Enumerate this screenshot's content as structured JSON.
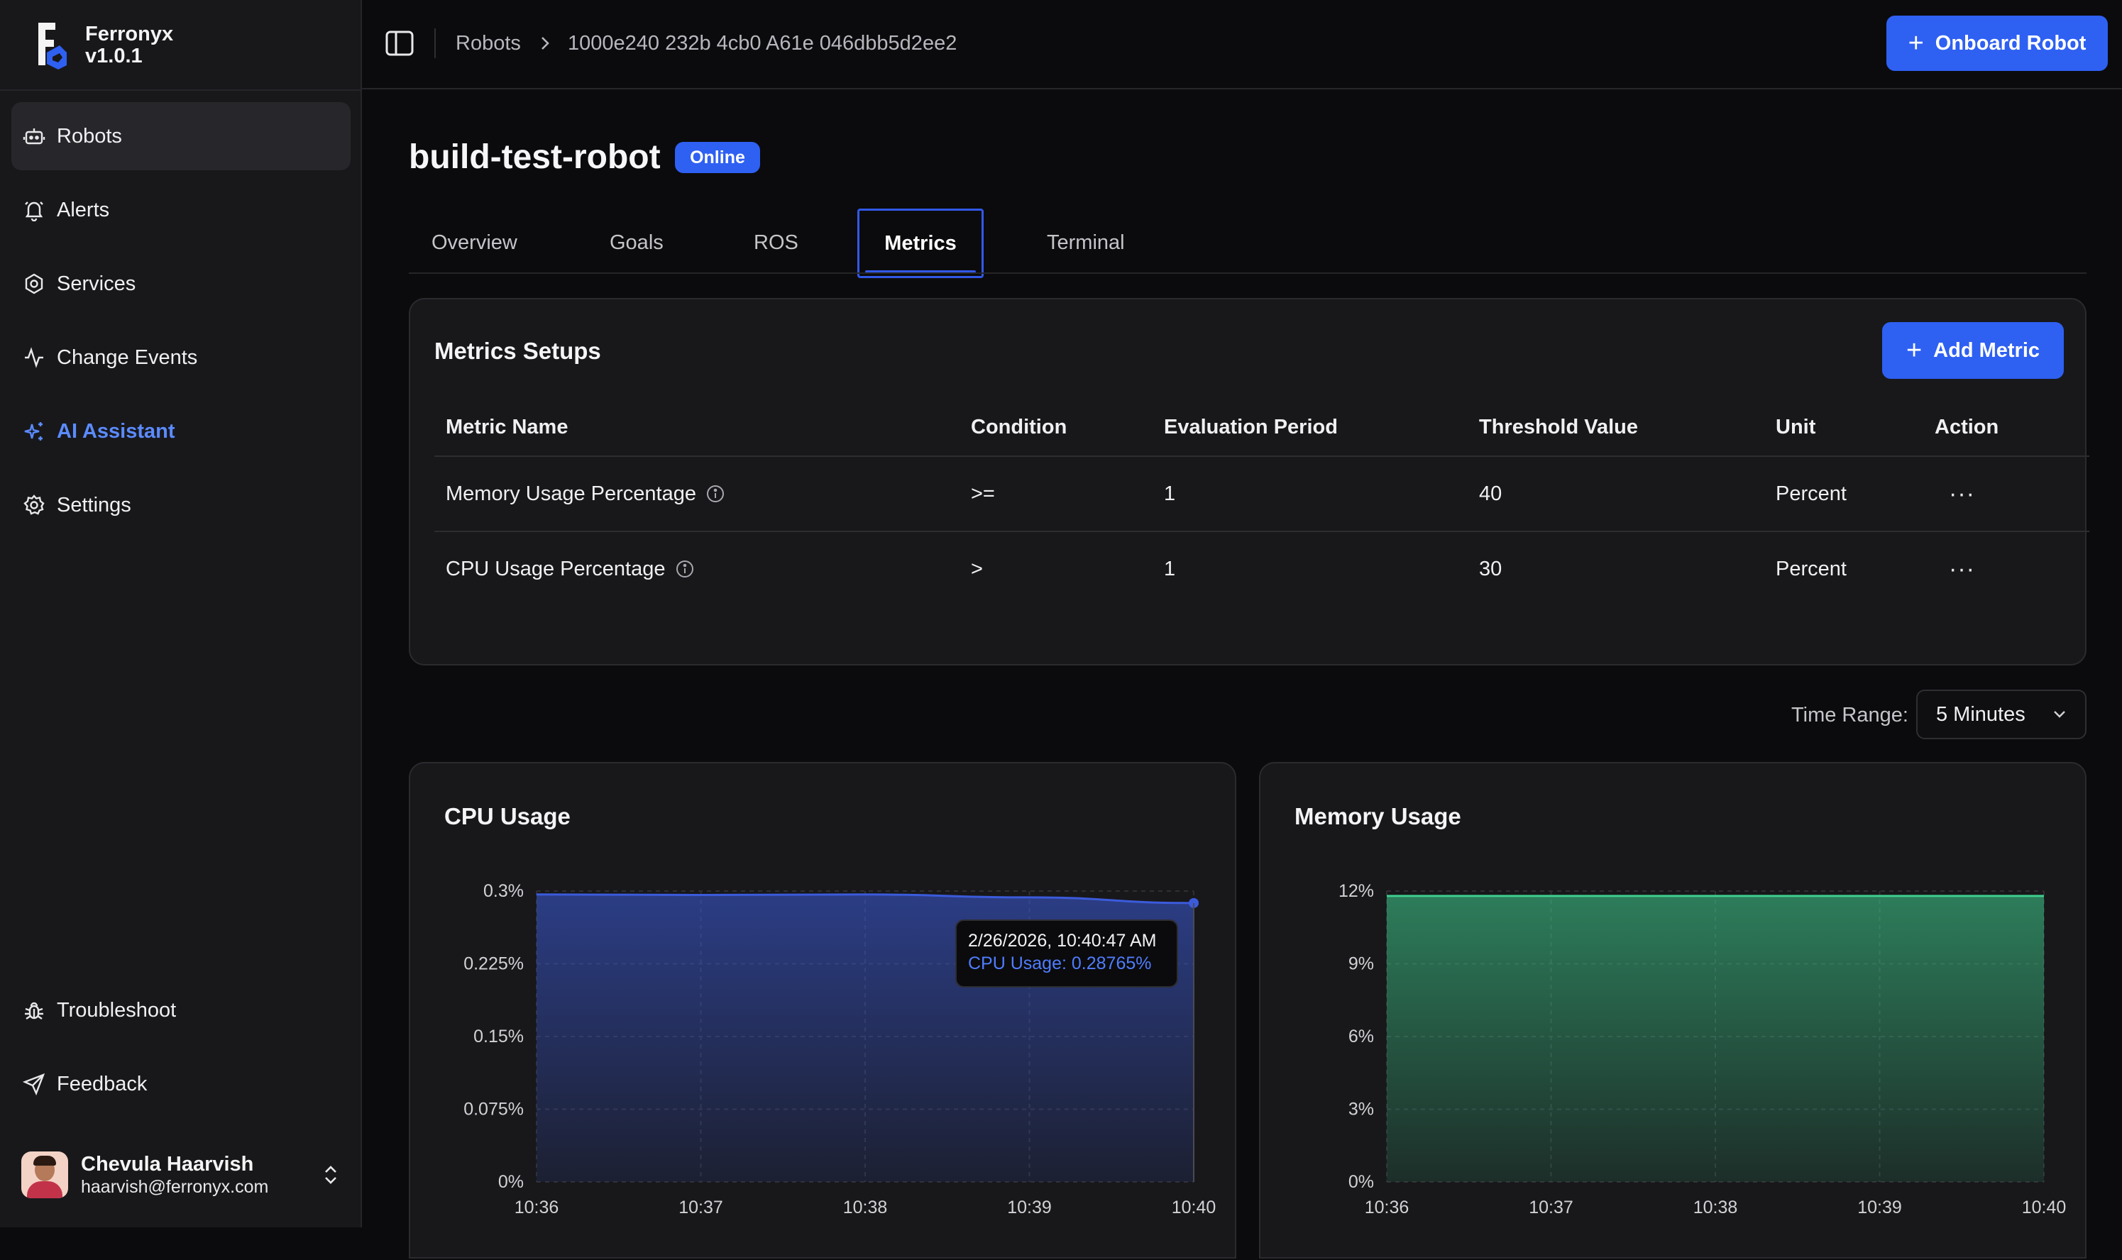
{
  "app": {
    "name": "Ferronyx",
    "version": "v1.0.1"
  },
  "sidebar": {
    "items": [
      {
        "label": "Robots",
        "icon": "robot-icon"
      },
      {
        "label": "Alerts",
        "icon": "bell-icon"
      },
      {
        "label": "Services",
        "icon": "hexagon-icon"
      },
      {
        "label": "Change Events",
        "icon": "activity-icon"
      },
      {
        "label": "AI Assistant",
        "icon": "sparkles-icon"
      },
      {
        "label": "Settings",
        "icon": "gear-icon"
      }
    ],
    "bottom_items": [
      {
        "label": "Troubleshoot",
        "icon": "bug-icon"
      },
      {
        "label": "Feedback",
        "icon": "send-icon"
      }
    ],
    "user": {
      "name": "Chevula Haarvish",
      "email": "haarvish@ferronyx.com"
    }
  },
  "header": {
    "breadcrumb": [
      "Robots",
      "1000e240 232b 4cb0 A61e 046dbb5d2ee2"
    ],
    "onboard_button": "Onboard Robot"
  },
  "robot": {
    "name": "build-test-robot",
    "status": "Online"
  },
  "tabs": [
    "Overview",
    "Goals",
    "ROS",
    "Metrics",
    "Terminal"
  ],
  "active_tab": "Metrics",
  "metrics_setup": {
    "title": "Metrics Setups",
    "add_button": "Add Metric",
    "columns": [
      "Metric Name",
      "Condition",
      "Evaluation Period",
      "Threshold Value",
      "Unit",
      "Action"
    ],
    "rows": [
      {
        "name": "Memory Usage Percentage",
        "condition": ">=",
        "period": "1",
        "threshold": "40",
        "unit": "Percent"
      },
      {
        "name": "CPU Usage Percentage",
        "condition": ">",
        "period": "1",
        "threshold": "30",
        "unit": "Percent"
      }
    ]
  },
  "time_range": {
    "label": "Time Range:",
    "value": "5 Minutes"
  },
  "colors": {
    "accent": "#2e60f2",
    "cpu": "#3b5bdb",
    "memory": "#3ecf8e"
  },
  "chart_data": [
    {
      "type": "area",
      "title": "CPU Usage",
      "x": [
        "10:36",
        "10:37",
        "10:38",
        "10:39",
        "10:40"
      ],
      "x_ticks": [
        "10:36",
        "10:37",
        "10:38",
        "10:39",
        "10:40"
      ],
      "y_ticks": [
        "0.3%",
        "0.225%",
        "0.15%",
        "0.075%",
        "0%"
      ],
      "ylim": [
        0,
        0.3
      ],
      "series": [
        {
          "values": [
            0.2965,
            0.296,
            0.2965,
            0.2935,
            0.28765
          ]
        }
      ],
      "tooltip": {
        "time": "2/26/2026, 10:40:47 AM",
        "text": "CPU Usage: 0.28765%"
      }
    },
    {
      "type": "area",
      "title": "Memory Usage",
      "x": [
        "10:36",
        "10:37",
        "10:38",
        "10:39",
        "10:40"
      ],
      "x_ticks": [
        "10:36",
        "10:37",
        "10:38",
        "10:39",
        "10:40"
      ],
      "y_ticks": [
        "12%",
        "9%",
        "6%",
        "3%",
        "0%"
      ],
      "ylim": [
        0,
        12
      ],
      "series": [
        {
          "values": [
            11.8,
            11.8,
            11.8,
            11.8,
            11.8
          ]
        }
      ]
    }
  ]
}
